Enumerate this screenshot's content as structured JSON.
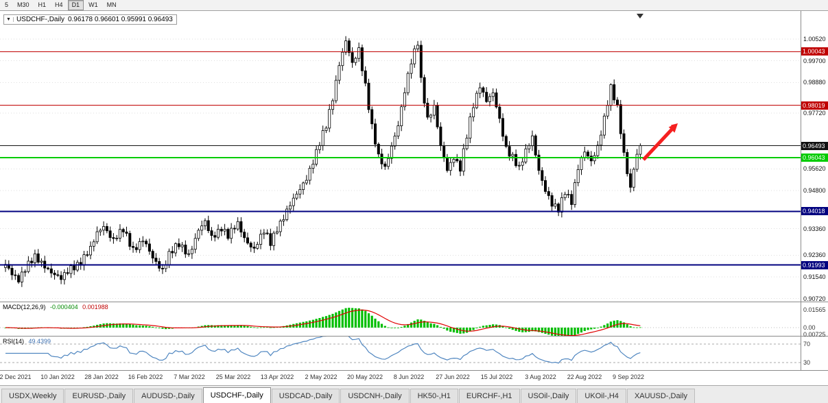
{
  "toolbar": {
    "periods": [
      {
        "label": "5",
        "active": false
      },
      {
        "label": "M30",
        "active": false
      },
      {
        "label": "H1",
        "active": false
      },
      {
        "label": "H4",
        "active": false
      },
      {
        "label": "D1",
        "active": true
      },
      {
        "label": "W1",
        "active": false
      },
      {
        "label": "MN",
        "active": false
      }
    ]
  },
  "chart": {
    "symbol": "USDCHF-,Daily",
    "ohlc_text": "0.96178 0.96601 0.95991 0.96493",
    "dropdown_icon": "▼",
    "shift_marker_icon": "▼",
    "y_axis_labels": [
      "1.00520",
      "0.99700",
      "0.98880",
      "0.97720",
      "0.95620",
      "0.94800",
      "0.93360",
      "0.92360",
      "0.91540",
      "0.90720"
    ],
    "levels": [
      {
        "label": "1.00043",
        "price": 1.00043,
        "color": "#c00000",
        "width": 1.2
      },
      {
        "label": "0.98019",
        "price": 0.98019,
        "color": "#c00000",
        "width": 1.2
      },
      {
        "label": "0.96493",
        "price": 0.96493,
        "color": "#111111",
        "width": 1
      },
      {
        "label": "0.96043",
        "price": 0.96043,
        "color": "#00cc00",
        "width": 2
      },
      {
        "label": "0.94018",
        "price": 0.94018,
        "color": "#00007f",
        "width": 2
      },
      {
        "label": "0.91993",
        "price": 0.91993,
        "color": "#00007f",
        "width": 2
      }
    ],
    "arrow_color": "#f52020"
  },
  "macd": {
    "label": "MACD(12,26,9)",
    "value_main": "-0.000404",
    "value_signal": "0.001988",
    "axis_labels": [
      "0.01565",
      "0.00",
      "0.00725"
    ],
    "hist_color": "#00be00",
    "signal_color": "#e00000"
  },
  "rsi": {
    "label": "RSI(14)",
    "value": "49.4399",
    "axis_labels": [
      "70",
      "30"
    ],
    "line_color": "#4f86c0"
  },
  "dates": [
    "22 Dec 2021",
    "10 Jan 2022",
    "28 Jan 2022",
    "16 Feb 2022",
    "7 Mar 2022",
    "25 Mar 2022",
    "13 Apr 2022",
    "2 May 2022",
    "20 May 2022",
    "8 Jun 2022",
    "27 Jun 2022",
    "15 Jul 2022",
    "3 Aug 2022",
    "22 Aug 2022",
    "9 Sep 2022"
  ],
  "tabs": [
    {
      "label": "USDX,Weekly",
      "active": false
    },
    {
      "label": "EURUSD-,Daily",
      "active": false
    },
    {
      "label": "AUDUSD-,Daily",
      "active": false
    },
    {
      "label": "USDCHF-,Daily",
      "active": true
    },
    {
      "label": "USDCAD-,Daily",
      "active": false
    },
    {
      "label": "USDCNH-,Daily",
      "active": false
    },
    {
      "label": "HK50-,H1",
      "active": false
    },
    {
      "label": "EURCHF-,H1",
      "active": false
    },
    {
      "label": "USOil-,Daily",
      "active": false
    },
    {
      "label": "UKOil-,H4",
      "active": false
    },
    {
      "label": "XAUUSD-,Daily",
      "active": false
    }
  ],
  "chart_data": {
    "type": "candlestick",
    "symbol": "USDCHF-",
    "timeframe": "Daily",
    "visible_ohlc": {
      "open": 0.96178,
      "high": 0.96601,
      "low": 0.95991,
      "close": 0.96493
    },
    "price_axis": {
      "top": 1.0158,
      "bottom": 0.9061,
      "grid_labels": [
        1.0052,
        0.997,
        0.9888,
        0.9772,
        0.9562,
        0.948,
        0.9336,
        0.9236,
        0.9154,
        0.9072
      ]
    },
    "horizontal_levels": [
      1.00043,
      0.98019,
      0.96493,
      0.96043,
      0.94018,
      0.91993
    ],
    "candle_count": 195,
    "close_path_anchors": [
      [
        0,
        0.9195
      ],
      [
        2,
        0.9168
      ],
      [
        4,
        0.915
      ],
      [
        6,
        0.9185
      ],
      [
        9,
        0.9225
      ],
      [
        12,
        0.92
      ],
      [
        15,
        0.9162
      ],
      [
        17,
        0.9142
      ],
      [
        20,
        0.919
      ],
      [
        23,
        0.9212
      ],
      [
        26,
        0.9255
      ],
      [
        28,
        0.932
      ],
      [
        30,
        0.9352
      ],
      [
        33,
        0.929
      ],
      [
        36,
        0.933
      ],
      [
        39,
        0.9262
      ],
      [
        42,
        0.9292
      ],
      [
        45,
        0.9222
      ],
      [
        48,
        0.9185
      ],
      [
        50,
        0.9242
      ],
      [
        53,
        0.9272
      ],
      [
        56,
        0.924
      ],
      [
        59,
        0.9332
      ],
      [
        61,
        0.9356
      ],
      [
        63,
        0.93
      ],
      [
        66,
        0.9345
      ],
      [
        68,
        0.931
      ],
      [
        71,
        0.935
      ],
      [
        73,
        0.9302
      ],
      [
        76,
        0.9262
      ],
      [
        79,
        0.9322
      ],
      [
        81,
        0.9282
      ],
      [
        83,
        0.9342
      ],
      [
        86,
        0.9402
      ],
      [
        89,
        0.9462
      ],
      [
        92,
        0.9532
      ],
      [
        95,
        0.9622
      ],
      [
        98,
        0.9722
      ],
      [
        100,
        0.9832
      ],
      [
        102,
        0.9962
      ],
      [
        104,
        1.0042
      ],
      [
        106,
        0.9952
      ],
      [
        108,
        1.0012
      ],
      [
        110,
        0.9882
      ],
      [
        112,
        0.9722
      ],
      [
        114,
        0.9602
      ],
      [
        116,
        0.9562
      ],
      [
        118,
        0.9652
      ],
      [
        120,
        0.9732
      ],
      [
        122,
        0.9852
      ],
      [
        124,
        0.9962
      ],
      [
        126,
        1.0042
      ],
      [
        127,
        0.9902
      ],
      [
        129,
        0.9752
      ],
      [
        131,
        0.9792
      ],
      [
        133,
        0.9642
      ],
      [
        135,
        0.9562
      ],
      [
        137,
        0.9612
      ],
      [
        139,
        0.9562
      ],
      [
        141,
        0.9682
      ],
      [
        143,
        0.9802
      ],
      [
        145,
        0.9882
      ],
      [
        147,
        0.9822
      ],
      [
        149,
        0.9842
      ],
      [
        151,
        0.9742
      ],
      [
        153,
        0.9642
      ],
      [
        155,
        0.9612
      ],
      [
        157,
        0.9562
      ],
      [
        159,
        0.9622
      ],
      [
        161,
        0.9682
      ],
      [
        163,
        0.9562
      ],
      [
        165,
        0.9482
      ],
      [
        167,
        0.9422
      ],
      [
        169,
        0.9405
      ],
      [
        171,
        0.9482
      ],
      [
        173,
        0.9442
      ],
      [
        175,
        0.9562
      ],
      [
        177,
        0.9622
      ],
      [
        179,
        0.9592
      ],
      [
        181,
        0.9652
      ],
      [
        183,
        0.9752
      ],
      [
        185,
        0.9862
      ],
      [
        187,
        0.9792
      ],
      [
        189,
        0.9622
      ],
      [
        191,
        0.9492
      ],
      [
        192,
        0.9562
      ],
      [
        193,
        0.9612
      ],
      [
        194,
        0.96493
      ]
    ],
    "x_axis_dates": [
      "22 Dec 2021",
      "10 Jan 2022",
      "28 Jan 2022",
      "16 Feb 2022",
      "7 Mar 2022",
      "25 Mar 2022",
      "13 Apr 2022",
      "2 May 2022",
      "20 May 2022",
      "8 Jun 2022",
      "27 Jun 2022",
      "15 Jul 2022",
      "3 Aug 2022",
      "22 Aug 2022",
      "9 Sep 2022"
    ],
    "indicators": {
      "macd": {
        "params": "12,26,9",
        "last_main": -0.000404,
        "last_signal": 0.001988,
        "scale_max": 0.01565
      },
      "rsi": {
        "params": "14",
        "last": 49.4399,
        "levels": [
          70,
          30
        ]
      }
    },
    "annotations": [
      {
        "kind": "arrow",
        "direction": "up-right",
        "color": "#f52020",
        "near_price": 0.965
      }
    ]
  }
}
